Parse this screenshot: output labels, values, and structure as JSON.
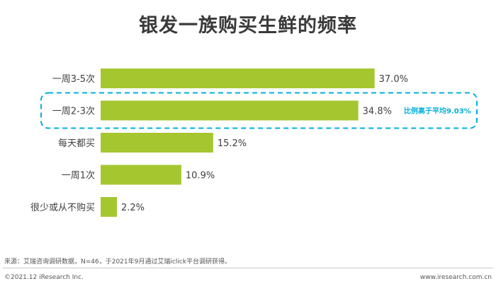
{
  "chart_data": {
    "type": "bar",
    "orientation": "horizontal",
    "title": "银发一族购买生鲜的频率",
    "categories": [
      "一周3-5次",
      "一周2-3次",
      "每天都买",
      "一周1次",
      "很少或从不购买"
    ],
    "values": [
      37.0,
      34.8,
      15.2,
      10.9,
      2.2
    ],
    "value_labels": [
      "37.0%",
      "34.8%",
      "15.2%",
      "10.9%",
      "2.2%"
    ],
    "bar_color": "#a6c630",
    "annotation": {
      "text": "比例高于平均9.03%",
      "target_category": "一周2-3次",
      "color": "#00b0d8",
      "style": "dashed-rounded-box"
    },
    "grid": false,
    "legend": "none"
  },
  "footer": {
    "source": "来源：艾瑞咨询调研数据，N=46，于2021年9月通过艾瑞iclick平台调研获得。",
    "copyright": "©2021.12 iResearch Inc.",
    "website": "www.iresearch.com.cn"
  }
}
